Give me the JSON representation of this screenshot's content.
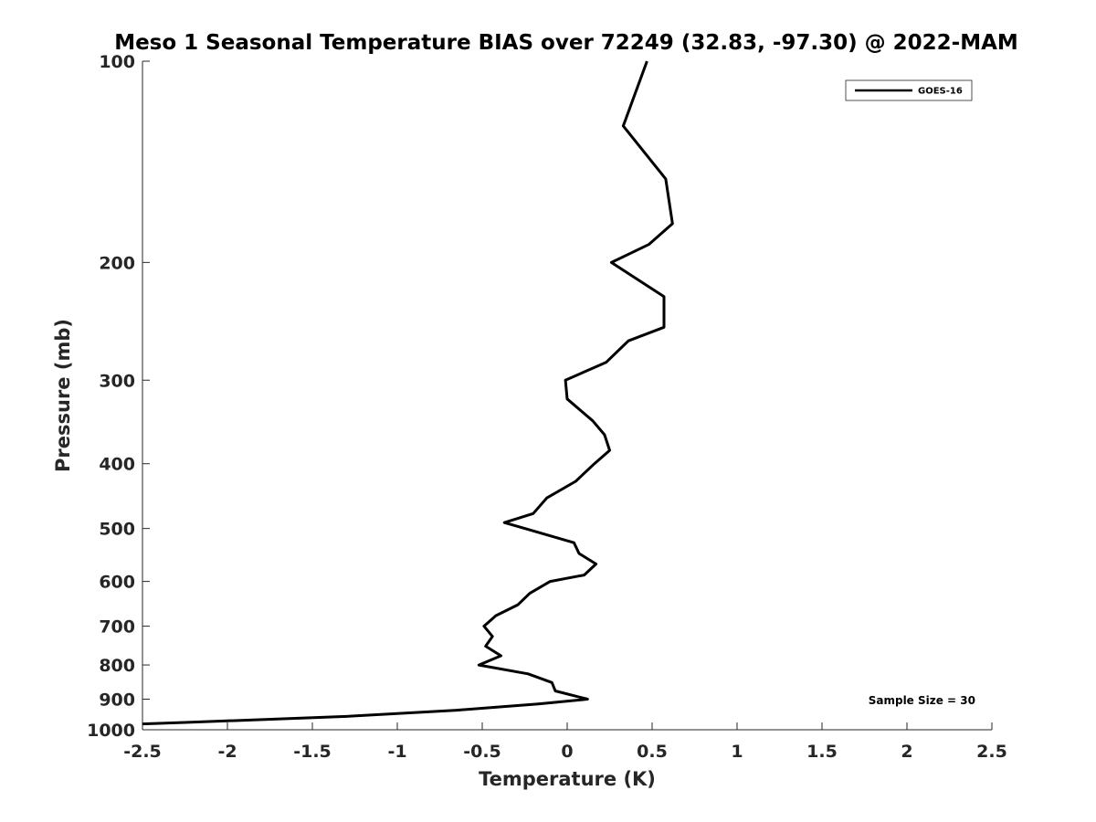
{
  "chart_data": {
    "type": "line",
    "title": "Meso 1 Seasonal Temperature BIAS over 72249 (32.83, -97.30) @ 2022-MAM",
    "xlabel": "Temperature (K)",
    "ylabel": "Pressure (mb)",
    "xlim": [
      -2.5,
      2.5
    ],
    "ylim": [
      100,
      1000
    ],
    "yscale": "log",
    "y_reversed": true,
    "x_ticks": [
      -2.5,
      -2,
      -1.5,
      -1,
      -0.5,
      0,
      0.5,
      1,
      1.5,
      2,
      2.5
    ],
    "x_tick_labels": [
      "-2.5",
      "-2",
      "-1.5",
      "-1",
      "-0.5",
      "0",
      "0.5",
      "1",
      "1.5",
      "2",
      "2.5"
    ],
    "y_ticks": [
      100,
      200,
      300,
      400,
      500,
      600,
      700,
      800,
      900,
      1000
    ],
    "y_tick_labels": [
      "100",
      "200",
      "300",
      "400",
      "500",
      "600",
      "700",
      "800",
      "900",
      "1000"
    ],
    "grid": false,
    "legend_position": "top-right",
    "series": [
      {
        "name": "GOES-16",
        "color": "#000000",
        "points": [
          {
            "pressure": 100,
            "bias": 0.47
          },
          {
            "pressure": 125,
            "bias": 0.33
          },
          {
            "pressure": 150,
            "bias": 0.58
          },
          {
            "pressure": 175,
            "bias": 0.62
          },
          {
            "pressure": 188,
            "bias": 0.48
          },
          {
            "pressure": 200,
            "bias": 0.26
          },
          {
            "pressure": 225,
            "bias": 0.57
          },
          {
            "pressure": 250,
            "bias": 0.57
          },
          {
            "pressure": 262,
            "bias": 0.36
          },
          {
            "pressure": 282,
            "bias": 0.23
          },
          {
            "pressure": 300,
            "bias": -0.01
          },
          {
            "pressure": 320,
            "bias": 0.0
          },
          {
            "pressure": 345,
            "bias": 0.15
          },
          {
            "pressure": 362,
            "bias": 0.22
          },
          {
            "pressure": 382,
            "bias": 0.25
          },
          {
            "pressure": 400,
            "bias": 0.16
          },
          {
            "pressure": 425,
            "bias": 0.05
          },
          {
            "pressure": 450,
            "bias": -0.12
          },
          {
            "pressure": 475,
            "bias": -0.2
          },
          {
            "pressure": 490,
            "bias": -0.37
          },
          {
            "pressure": 500,
            "bias": -0.25
          },
          {
            "pressure": 525,
            "bias": 0.04
          },
          {
            "pressure": 545,
            "bias": 0.07
          },
          {
            "pressure": 565,
            "bias": 0.17
          },
          {
            "pressure": 587,
            "bias": 0.1
          },
          {
            "pressure": 600,
            "bias": -0.1
          },
          {
            "pressure": 625,
            "bias": -0.22
          },
          {
            "pressure": 650,
            "bias": -0.29
          },
          {
            "pressure": 675,
            "bias": -0.42
          },
          {
            "pressure": 700,
            "bias": -0.49
          },
          {
            "pressure": 725,
            "bias": -0.44
          },
          {
            "pressure": 750,
            "bias": -0.48
          },
          {
            "pressure": 775,
            "bias": -0.39
          },
          {
            "pressure": 800,
            "bias": -0.52
          },
          {
            "pressure": 825,
            "bias": -0.23
          },
          {
            "pressure": 850,
            "bias": -0.09
          },
          {
            "pressure": 875,
            "bias": -0.07
          },
          {
            "pressure": 900,
            "bias": 0.12
          },
          {
            "pressure": 915,
            "bias": -0.17
          },
          {
            "pressure": 935,
            "bias": -0.65
          },
          {
            "pressure": 955,
            "bias": -1.3
          },
          {
            "pressure": 975,
            "bias": -2.25
          },
          {
            "pressure": 980,
            "bias": -2.5
          }
        ]
      }
    ],
    "annotation": "Sample Size = 30"
  }
}
